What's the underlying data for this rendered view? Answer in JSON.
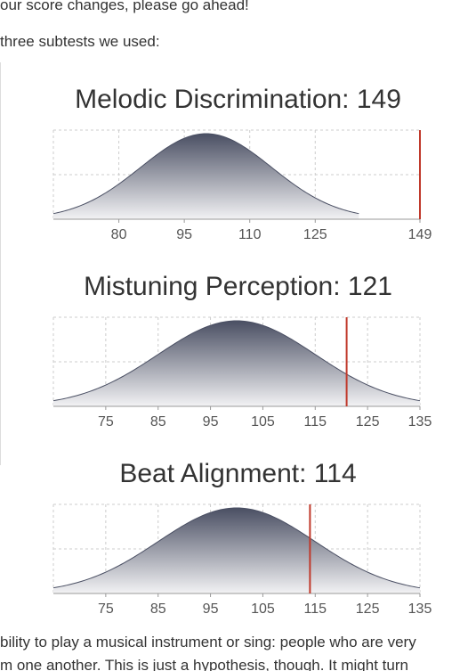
{
  "text": {
    "top_line": "our score changes, please go ahead!",
    "intro_line": "three subtests we used:",
    "bottom_line_1": "bility to play a musical instrument or sing: people who are very",
    "bottom_line_2": "m one another. This is just a hypothesis, though. It might turn"
  },
  "colors": {
    "curve_dark": "#4a4f63",
    "curve_light": "#f2f2f4",
    "score_line": "#c0392b",
    "grid": "#cccccc",
    "text": "#333333"
  },
  "chart_data": [
    {
      "type": "area",
      "title": "Melodic Discrimination: 149",
      "score": 149,
      "distribution": {
        "mean": 100,
        "sd": 15
      },
      "xlim": [
        65,
        149
      ],
      "curve_range": [
        65,
        135
      ],
      "xticks": [
        80,
        95,
        110,
        125,
        149
      ],
      "grid": true
    },
    {
      "type": "area",
      "title": "Mistuning Perception: 121",
      "score": 121,
      "distribution": {
        "mean": 100,
        "sd": 15
      },
      "xlim": [
        65,
        135
      ],
      "curve_range": [
        65,
        135
      ],
      "xticks": [
        75,
        85,
        95,
        105,
        115,
        125,
        135
      ],
      "grid": true
    },
    {
      "type": "area",
      "title": "Beat Alignment: 114",
      "score": 114,
      "distribution": {
        "mean": 100,
        "sd": 15
      },
      "xlim": [
        65,
        135
      ],
      "curve_range": [
        65,
        135
      ],
      "xticks": [
        75,
        85,
        95,
        105,
        115,
        125,
        135
      ],
      "grid": true
    }
  ]
}
